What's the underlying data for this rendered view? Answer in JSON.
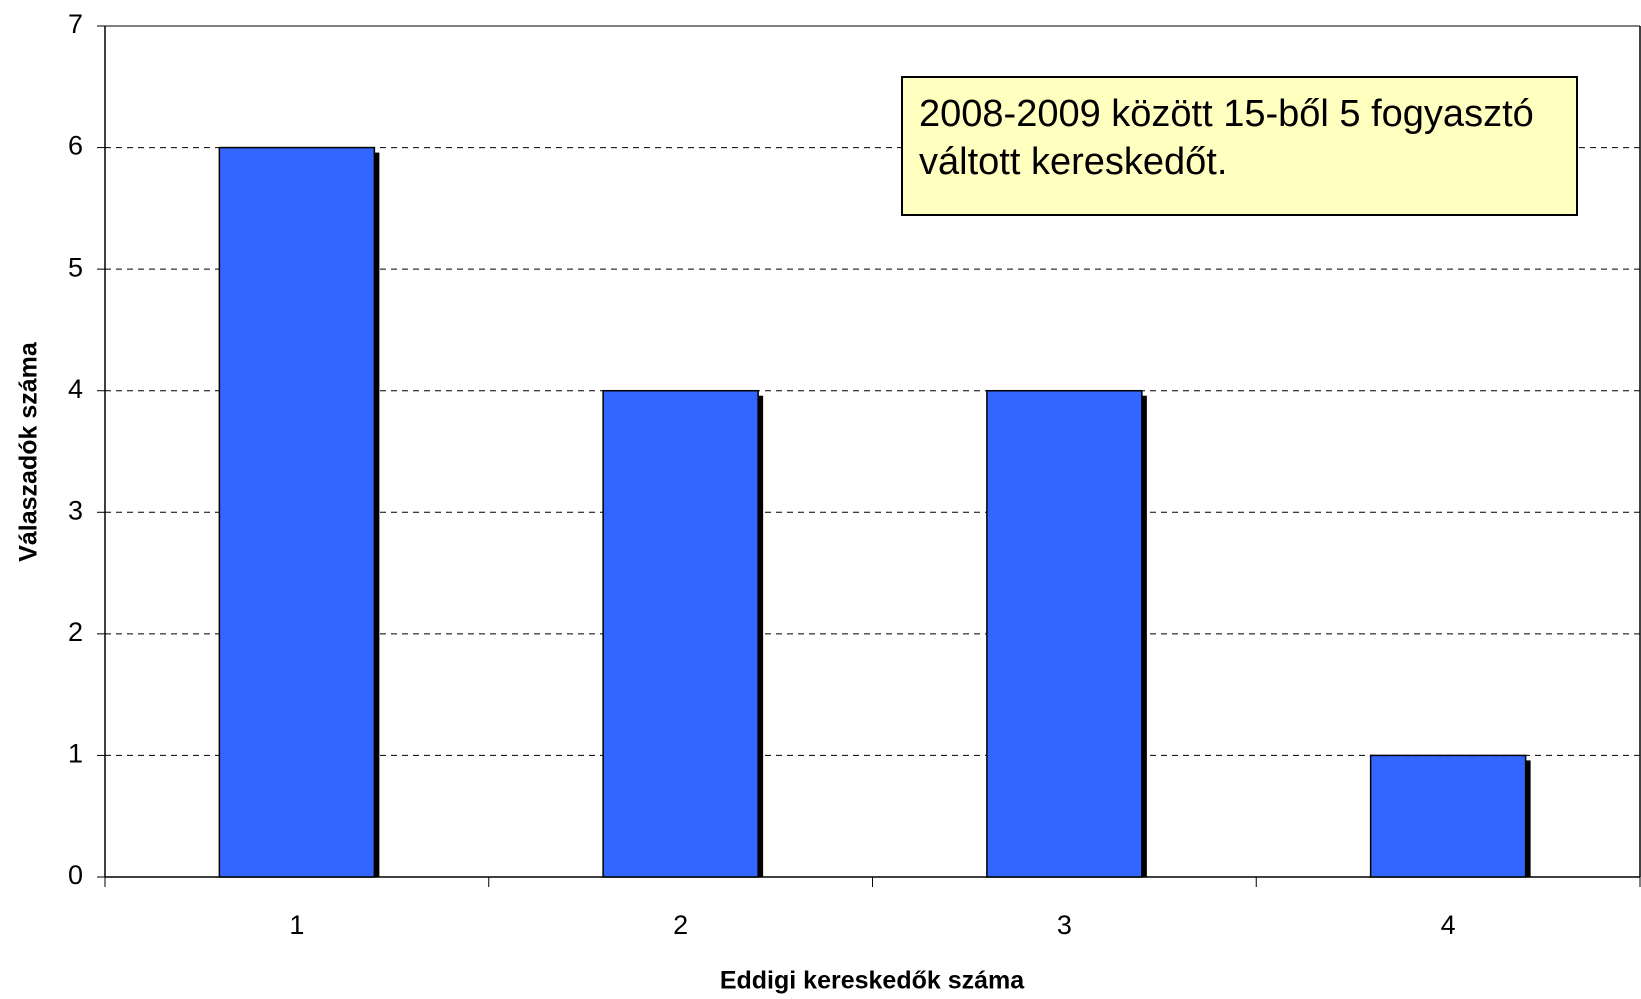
{
  "chart_data": {
    "type": "bar",
    "annotation": "2008-2009 között 15-ből 5 fogyasztó váltott kereskedőt.",
    "x_label": "Eddigi kereskedők száma",
    "y_label": "Válaszadók száma",
    "categories": [
      "1",
      "2",
      "3",
      "4"
    ],
    "values": [
      6,
      4,
      4,
      1
    ],
    "color": "#3366ff",
    "ylim": [
      0,
      7
    ],
    "yticks": [
      0,
      1,
      2,
      3,
      4,
      5,
      6,
      7
    ],
    "grid": true
  }
}
